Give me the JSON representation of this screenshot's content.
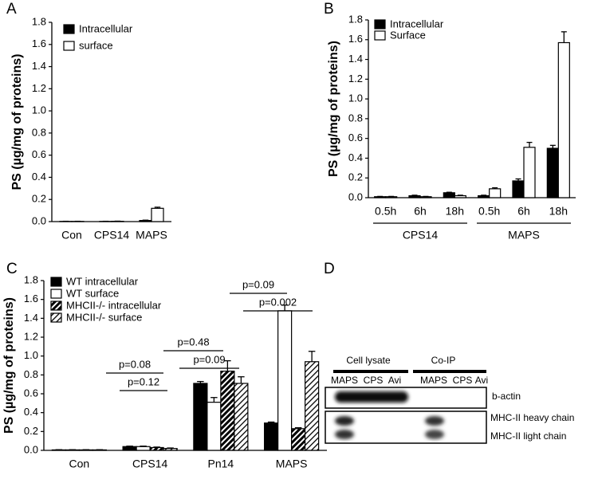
{
  "chart_data": [
    {
      "type": "bar",
      "panel_label": "A",
      "ylabel": "PS (µg/mg of proteins)",
      "categories": [
        "Con",
        "CPS14",
        "MAPS"
      ],
      "series": [
        {
          "name": "Intracellular",
          "color": "#000000",
          "values": [
            0.002,
            0.002,
            0.01
          ],
          "errors": [
            0.001,
            0.001,
            0.003
          ]
        },
        {
          "name": "surface",
          "color": "#ffffff",
          "values": [
            0.002,
            0.003,
            0.12
          ],
          "errors": [
            0.001,
            0.001,
            0.01
          ]
        }
      ],
      "ylim": [
        0,
        1.8
      ],
      "yticks": [
        {
          "value": 0,
          "label": "0.0"
        },
        0.2,
        0.4,
        0.6,
        0.8,
        {
          "value": 1,
          "label": "1.0"
        },
        1.2,
        1.4,
        1.6,
        1.8
      ],
      "legend": "upper left"
    },
    {
      "type": "bar",
      "panel_label": "B",
      "ylabel": "PS (µg/mg of proteins)",
      "categories": [
        "0.5h",
        "6h",
        "18h",
        "0.5h",
        "6h",
        "18h"
      ],
      "category_groups": [
        "CPS14",
        "MAPS"
      ],
      "series": [
        {
          "name": "Intracellular",
          "color": "#000000",
          "values": [
            0.01,
            0.02,
            0.05,
            0.02,
            0.17,
            0.5
          ],
          "errors": [
            0.003,
            0.005,
            0.005,
            0.005,
            0.02,
            0.03
          ]
        },
        {
          "name": "Surface",
          "color": "#ffffff",
          "values": [
            0.01,
            0.01,
            0.02,
            0.09,
            0.51,
            1.57
          ],
          "errors": [
            0.003,
            0.003,
            0.005,
            0.01,
            0.05,
            0.11
          ]
        }
      ],
      "ylim": [
        0,
        1.8
      ],
      "yticks": [
        {
          "value": 0,
          "label": "0.0"
        },
        0.2,
        0.4,
        0.6,
        0.8,
        {
          "value": 1,
          "label": "1.0"
        },
        1.2,
        1.4,
        1.6,
        1.8
      ],
      "legend": "upper left"
    },
    {
      "type": "bar",
      "panel_label": "C",
      "ylabel": "PS (µg/mg of proteins)",
      "categories": [
        "Con",
        "CPS14",
        "Pn14",
        "MAPS"
      ],
      "series": [
        {
          "name": "WT intracellular",
          "color": "#000000",
          "values": [
            0.005,
            0.04,
            0.71,
            0.29
          ],
          "errors": [
            0.002,
            0.005,
            0.02,
            0.01
          ]
        },
        {
          "name": "WT surface",
          "color": "#ffffff",
          "values": [
            0.005,
            0.04,
            0.51,
            1.48
          ],
          "errors": [
            0.002,
            0.005,
            0.05,
            0.06
          ]
        },
        {
          "name": "MHCII-/- intracellular",
          "color": "#000000",
          "hatch": "dense",
          "values": [
            0.005,
            0.03,
            0.84,
            0.23
          ],
          "errors": [
            0.002,
            0.005,
            0.11,
            0.01
          ]
        },
        {
          "name": "MHCII-/- surface",
          "color": "#000000",
          "hatch": "sparse",
          "values": [
            0.005,
            0.02,
            0.71,
            0.94
          ],
          "errors": [
            0.002,
            0.005,
            0.07,
            0.11
          ]
        }
      ],
      "ylim": [
        0,
        1.8
      ],
      "yticks": [
        {
          "value": 0,
          "label": "0.0"
        },
        0.2,
        0.4,
        0.6,
        0.8,
        {
          "value": 1,
          "label": "1.0"
        },
        1.2,
        1.4,
        1.6,
        1.8
      ],
      "legend": "upper left",
      "annotations": [
        "p=0.08",
        "p=0.12",
        "p=0.48",
        "p=0.09",
        "p=0.09",
        "p=0.002"
      ]
    }
  ],
  "panel_d": {
    "panel_label": "D",
    "groups": [
      "Cell lysate",
      "Co-IP"
    ],
    "lanes": [
      "MAPS",
      "CPS",
      "Avi",
      "MAPS",
      "CPS",
      "Avi"
    ],
    "rows": [
      "b-actin",
      "MHC-II heavy chain",
      "MHC-II light chain"
    ]
  }
}
